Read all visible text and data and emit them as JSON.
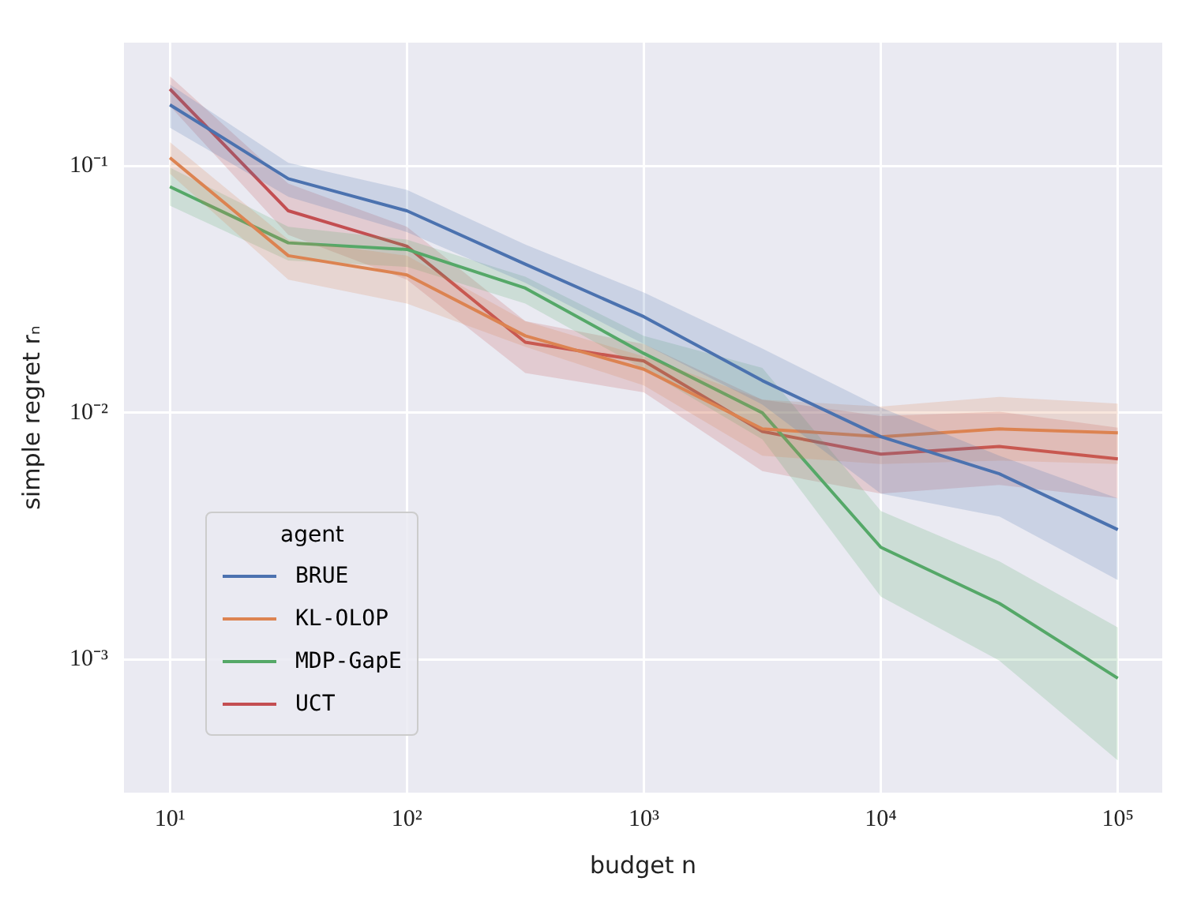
{
  "chart_data": {
    "type": "line",
    "xlabel": "budget n",
    "ylabel": "simple regret rₙ",
    "legend_title": "agent",
    "log": "xy",
    "grid": true,
    "legend": "bottom left",
    "marker": "none",
    "line_style": "solid",
    "x": [
      10,
      31.6,
      100,
      316,
      1000,
      3162,
      10000,
      31623,
      100000
    ],
    "xlim": [
      6.4,
      154000
    ],
    "ylim": [
      0.000289,
      0.316
    ],
    "xticks": [
      {
        "value": 10,
        "label": "10¹"
      },
      {
        "value": 100,
        "label": "10²"
      },
      {
        "value": 1000,
        "label": "10³"
      },
      {
        "value": 10000,
        "label": "10⁴"
      },
      {
        "value": 100000,
        "label": "10⁵"
      }
    ],
    "yticks": [
      {
        "value": 0.001,
        "label": "10⁻³"
      },
      {
        "value": 0.01,
        "label": "10⁻²"
      },
      {
        "value": 0.1,
        "label": "10⁻¹"
      }
    ],
    "series": [
      {
        "name": "BRUE",
        "color": "#4c72b0",
        "values": [
          0.177,
          0.0888,
          0.0658,
          0.04,
          0.0245,
          0.0135,
          0.008,
          0.00566,
          0.00336
        ],
        "lower": [
          0.143,
          0.075,
          0.054,
          0.0336,
          0.019,
          0.0108,
          0.0047,
          0.0038,
          0.0021
        ],
        "upper": [
          0.214,
          0.103,
          0.08,
          0.048,
          0.0307,
          0.0182,
          0.0105,
          0.0067,
          0.0045
        ]
      },
      {
        "name": "KL-OLOP",
        "color": "#dd8452",
        "values": [
          0.108,
          0.0433,
          0.0362,
          0.0205,
          0.015,
          0.0086,
          0.008,
          0.0086,
          0.0083
        ],
        "lower": [
          0.093,
          0.0346,
          0.0277,
          0.0185,
          0.0129,
          0.0067,
          0.0062,
          0.0064,
          0.0062
        ],
        "upper": [
          0.125,
          0.0503,
          0.0433,
          0.0235,
          0.0169,
          0.0113,
          0.0106,
          0.0116,
          0.0109
        ]
      },
      {
        "name": "MDP-GapE",
        "color": "#55a868",
        "values": [
          0.0824,
          0.0488,
          0.0459,
          0.032,
          0.0174,
          0.01,
          0.00285,
          0.00169,
          0.00084
        ],
        "lower": [
          0.069,
          0.0414,
          0.039,
          0.0277,
          0.015,
          0.0078,
          0.0018,
          0.00099,
          0.00039
        ],
        "upper": [
          0.0985,
          0.0567,
          0.0503,
          0.0356,
          0.0205,
          0.0152,
          0.004,
          0.0025,
          0.00135
        ]
      },
      {
        "name": "UCT",
        "color": "#c44e52",
        "values": [
          0.205,
          0.0658,
          0.0473,
          0.0193,
          0.0162,
          0.0084,
          0.0068,
          0.0073,
          0.0065
        ],
        "lower": [
          0.175,
          0.0526,
          0.0346,
          0.0145,
          0.0121,
          0.0058,
          0.0047,
          0.0051,
          0.0045
        ],
        "upper": [
          0.231,
          0.0848,
          0.0567,
          0.0235,
          0.019,
          0.0113,
          0.0097,
          0.0101,
          0.0087
        ]
      }
    ]
  }
}
